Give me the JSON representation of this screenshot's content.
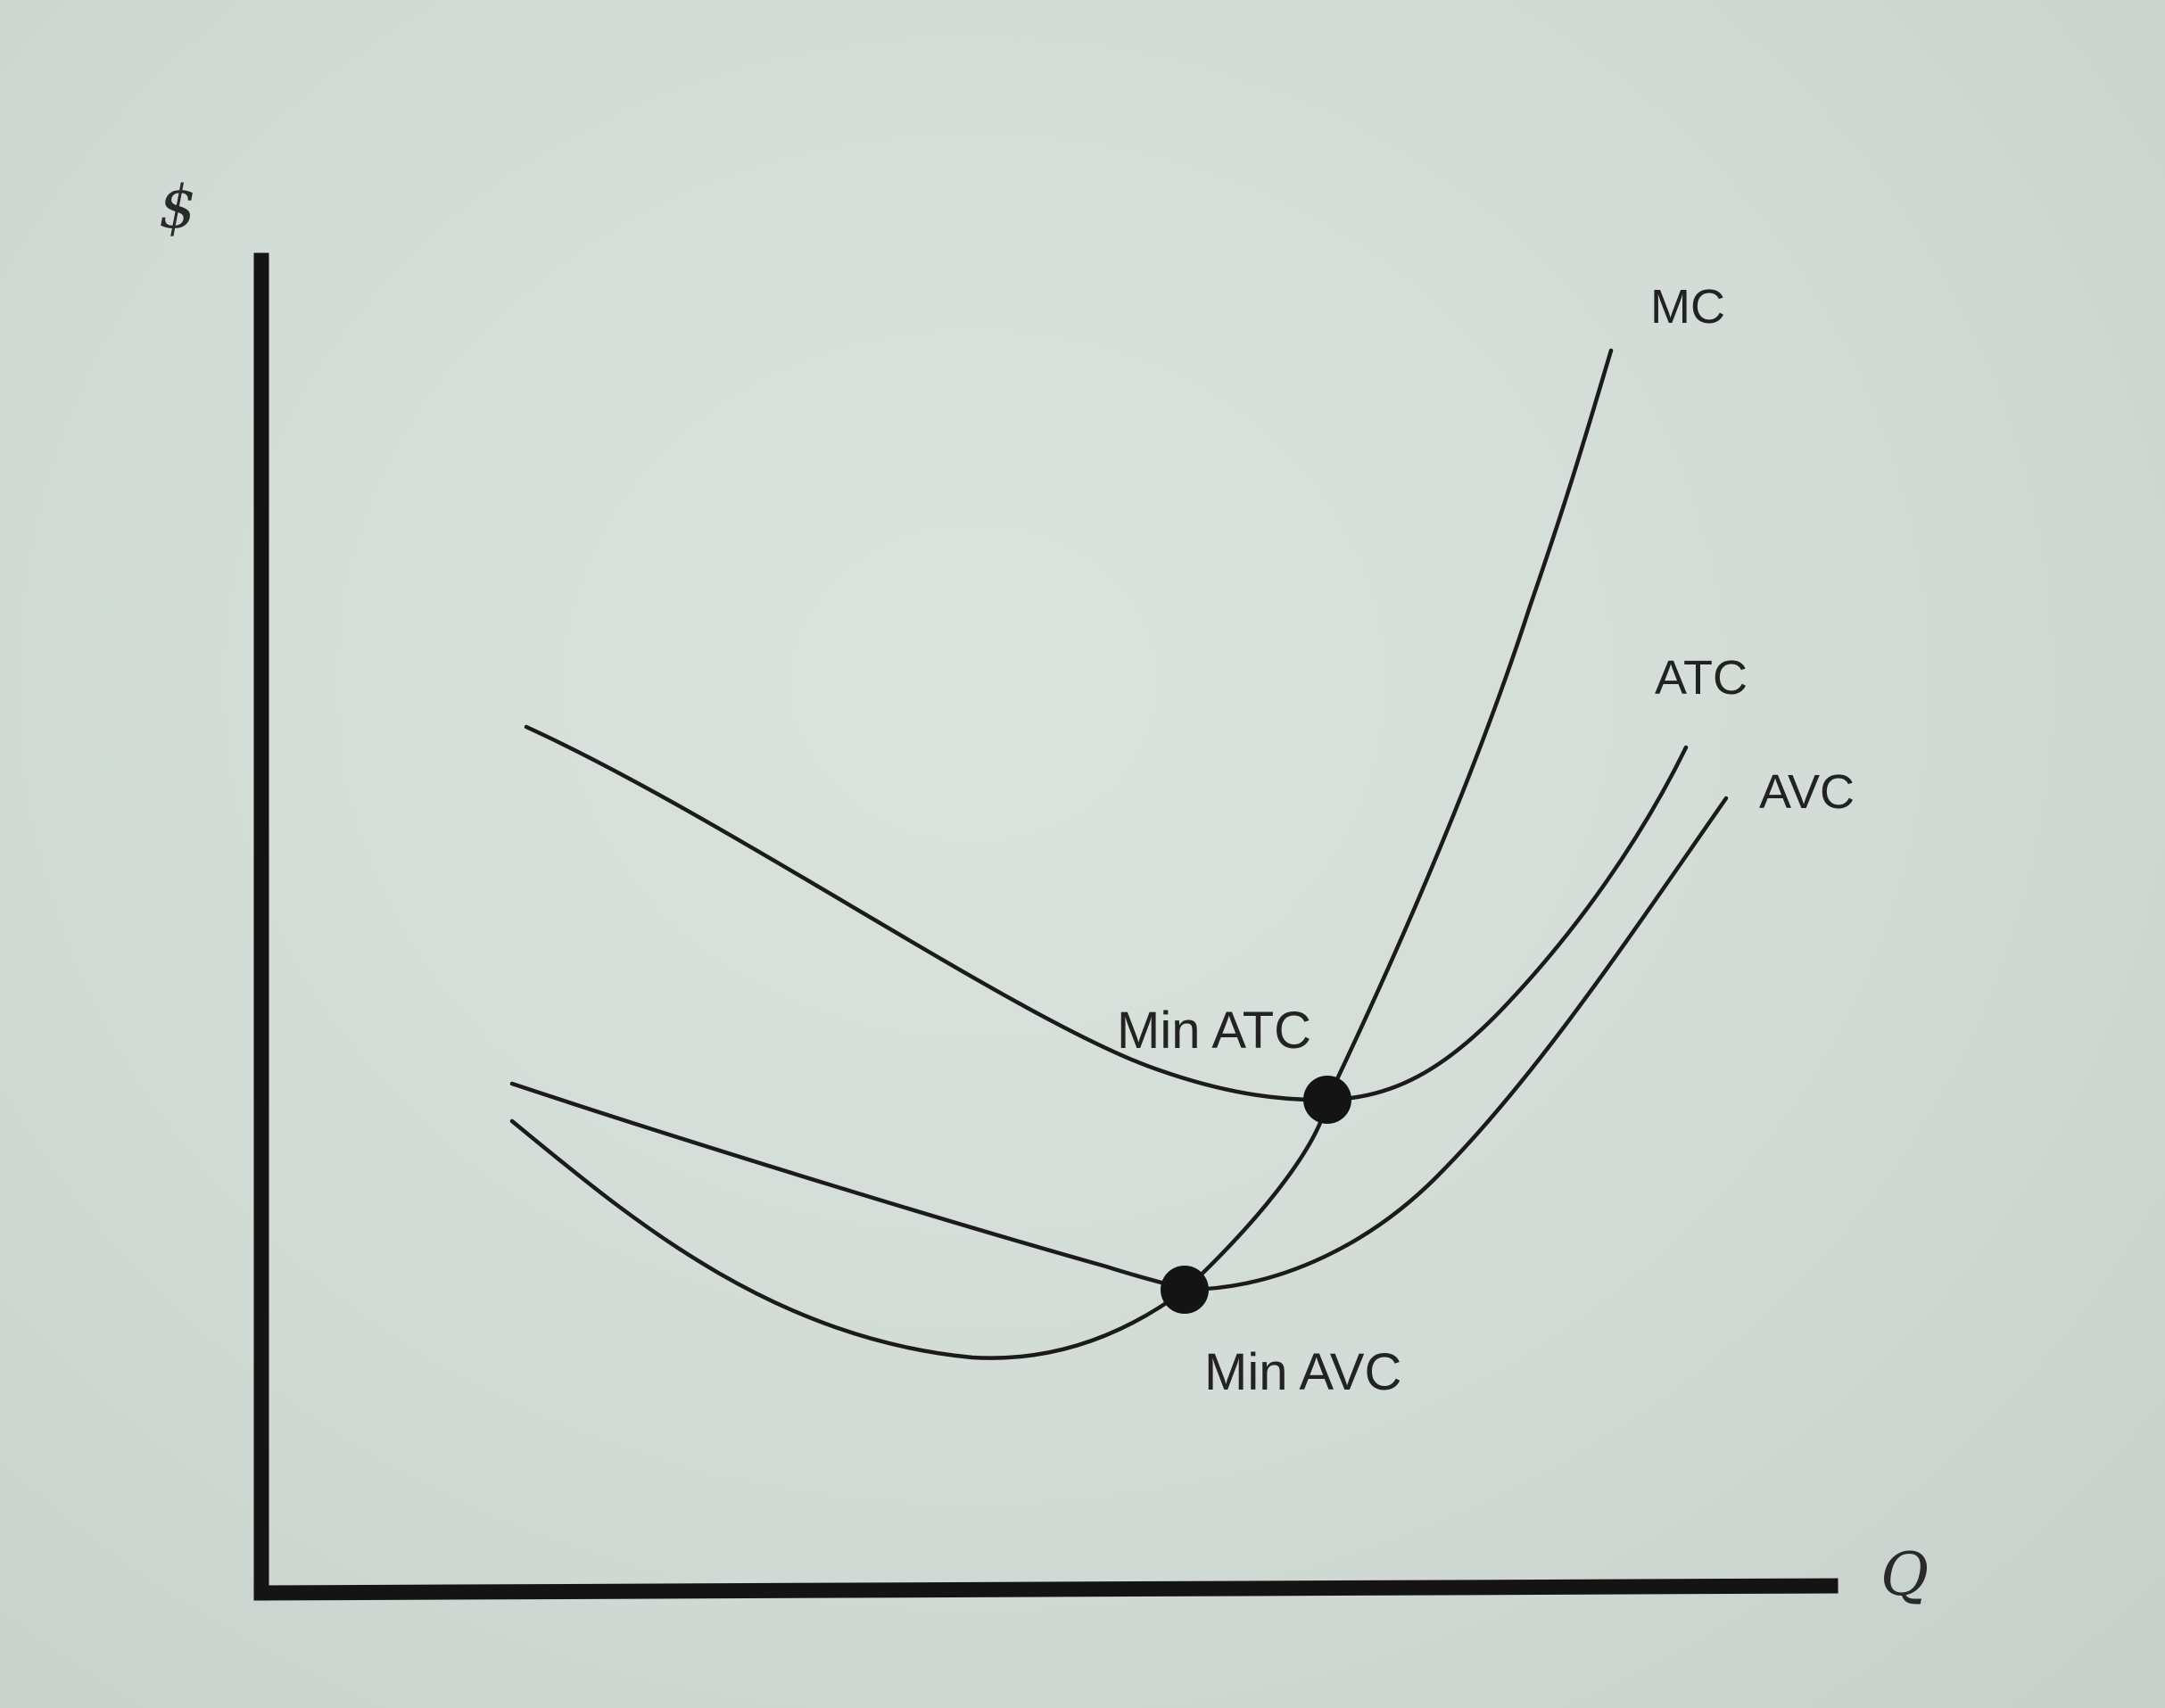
{
  "chart_data": {
    "type": "line",
    "title": "",
    "xlabel": "Q",
    "ylabel": "$",
    "ticks": false,
    "grid": false,
    "legend": "labels at curve ends",
    "series": [
      {
        "name": "MC",
        "shape": "U-shaped, rises steeply after its minimum, passes through min AVC and min ATC"
      },
      {
        "name": "ATC",
        "shape": "U-shaped, highest average curve"
      },
      {
        "name": "AVC",
        "shape": "U-shaped, below ATC, gap narrows as Q rises"
      }
    ],
    "annotations": [
      {
        "label": "Min ATC",
        "marker": "dot where MC crosses ATC"
      },
      {
        "label": "Min AVC",
        "marker": "dot where MC crosses AVC"
      }
    ],
    "colors": {
      "line": "#1b1b1b",
      "background": "#d6ded8"
    }
  }
}
